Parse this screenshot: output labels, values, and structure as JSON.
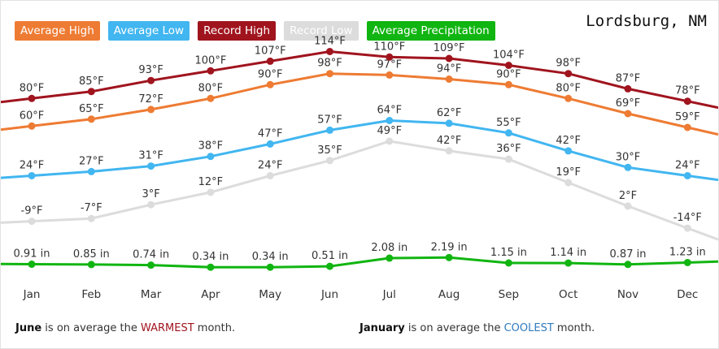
{
  "header": {
    "city": "Lordsburg, NM"
  },
  "legend": [
    {
      "label": "Average High",
      "color": "#ee7b33"
    },
    {
      "label": "Average Low",
      "color": "#41b6f0"
    },
    {
      "label": "Record High",
      "color": "#a0141e"
    },
    {
      "label": "Record Low",
      "color": "#dcdcdc"
    },
    {
      "label": "Average Precipitation",
      "color": "#11b511"
    }
  ],
  "chart_data": {
    "type": "line",
    "categories": [
      "Jan",
      "Feb",
      "Mar",
      "Apr",
      "May",
      "Jun",
      "Jul",
      "Aug",
      "Sep",
      "Oct",
      "Nov",
      "Dec"
    ],
    "series": [
      {
        "name": "Average High",
        "unit": "°F",
        "color": "#ee7b33",
        "values": [
          60,
          65,
          72,
          80,
          90,
          98,
          97,
          94,
          90,
          80,
          69,
          59
        ],
        "labels": [
          "60°F",
          "65°F",
          "72°F",
          "80°F",
          "90°F",
          "98°F",
          "97°F",
          "94°F",
          "90°F",
          "80°F",
          "69°F",
          "59°F"
        ]
      },
      {
        "name": "Average Low",
        "unit": "°F",
        "color": "#41b6f0",
        "values": [
          24,
          27,
          31,
          38,
          47,
          57,
          64,
          62,
          55,
          42,
          30,
          24
        ],
        "labels": [
          "24°F",
          "27°F",
          "31°F",
          "38°F",
          "47°F",
          "57°F",
          "64°F",
          "62°F",
          "55°F",
          "42°F",
          "30°F",
          "24°F"
        ]
      },
      {
        "name": "Record High",
        "unit": "°F",
        "color": "#a0141e",
        "values": [
          80,
          85,
          93,
          100,
          107,
          114,
          110,
          109,
          104,
          98,
          87,
          78
        ],
        "labels": [
          "80°F",
          "85°F",
          "93°F",
          "100°F",
          "107°F",
          "114°F",
          "110°F",
          "109°F",
          "104°F",
          "98°F",
          "87°F",
          "78°F"
        ]
      },
      {
        "name": "Record Low",
        "unit": "°F",
        "color": "#dcdcdc",
        "values": [
          -9,
          -7,
          3,
          12,
          24,
          35,
          49,
          42,
          36,
          19,
          2,
          -14
        ],
        "labels": [
          "-9°F",
          "-7°F",
          "3°F",
          "12°F",
          "24°F",
          "35°F",
          "49°F",
          "42°F",
          "36°F",
          "19°F",
          "2°F",
          "-14°F"
        ]
      },
      {
        "name": "Average Precipitation",
        "unit": "in",
        "color": "#11b511",
        "values": [
          0.91,
          0.85,
          0.74,
          0.34,
          0.34,
          0.51,
          2.08,
          2.19,
          1.15,
          1.14,
          0.87,
          1.23
        ],
        "labels": [
          "0.91 in",
          "0.85 in",
          "0.74 in",
          "0.34 in",
          "0.34 in",
          "0.51 in",
          "2.08 in",
          "2.19 in",
          "1.15 in",
          "1.14 in",
          "0.87 in",
          "1.23 in"
        ]
      }
    ]
  },
  "footer": {
    "warm_month": "June",
    "warm_pre": " is on average the ",
    "warm_word": "WARMEST",
    "warm_post": " month.",
    "cool_month": "January",
    "cool_pre": " is on average the ",
    "cool_word": "COOLEST",
    "cool_post": " month."
  }
}
